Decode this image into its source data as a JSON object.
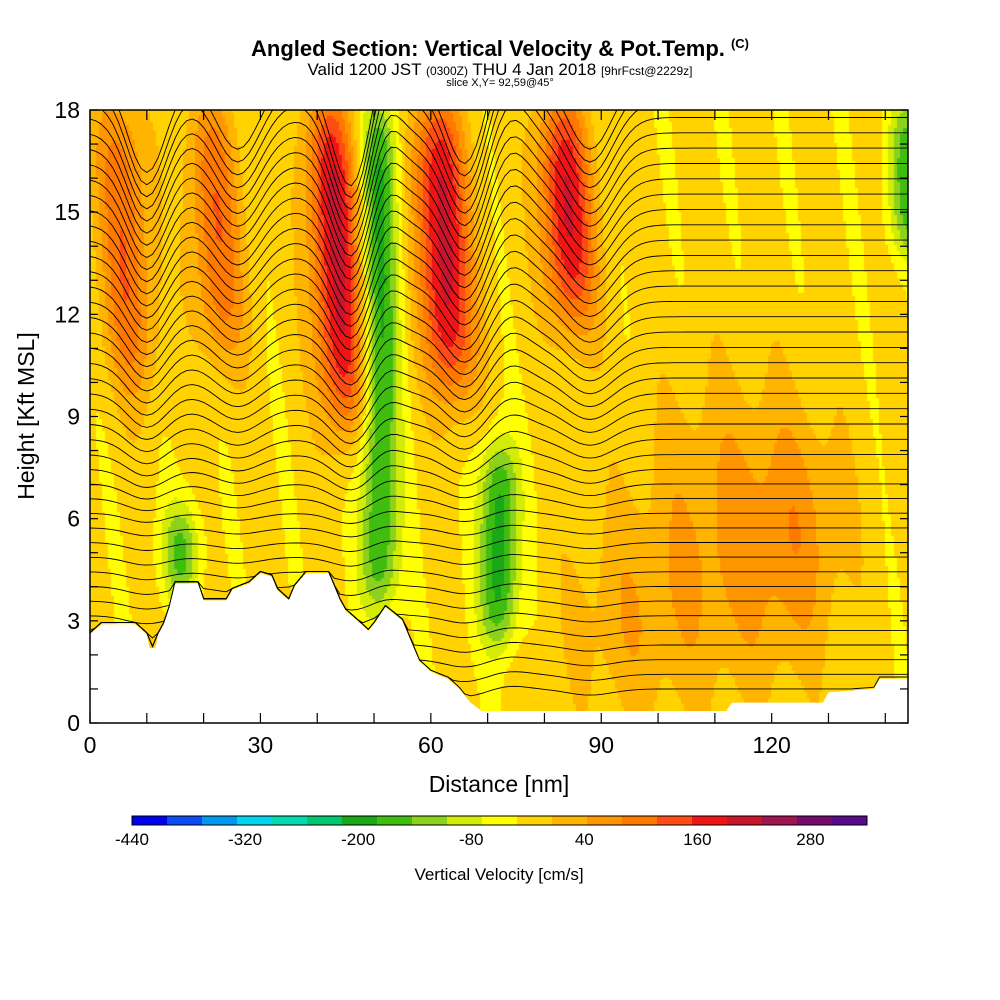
{
  "title": {
    "main": "Angled Section: Vertical Velocity & Pot.Temp.",
    "main_unit": "(C)",
    "valid_prefix": "Valid 1200 JST",
    "valid_utc": "(0300Z)",
    "valid_date": "THU 4 Jan 2018",
    "valid_fcst": "[9hrFcst@2229z]",
    "slice": "slice X,Y= 92,59@45°"
  },
  "colors": {
    "scale": [
      "#0000ee",
      "#0a4cf5",
      "#0099f0",
      "#00d6f0",
      "#00dbb0",
      "#00c86e",
      "#18a818",
      "#40be10",
      "#8cd21c",
      "#d2ec06",
      "#ffff00",
      "#ffd200",
      "#ffb400",
      "#ff9600",
      "#ff7800",
      "#ff4b14",
      "#f01414",
      "#c8142d",
      "#a01450",
      "#780a6e",
      "#5a0a8c"
    ],
    "terrain": "#ffffff",
    "contour": "#000000"
  },
  "chart_data": {
    "type": "heatmap",
    "title": "Angled Section: Vertical Velocity & Pot.Temp.",
    "xlabel": "Distance [nm]",
    "ylabel": "Height [Kft MSL]",
    "xlim": [
      0,
      144
    ],
    "ylim": [
      0,
      18
    ],
    "x_ticks": [
      "0",
      "30",
      "60",
      "90",
      "120"
    ],
    "y_ticks": [
      "0",
      "3",
      "6",
      "9",
      "12",
      "15",
      "18"
    ],
    "colorbar": {
      "label": "Vertical Velocity [cm/s]",
      "ticks": [
        "-440",
        "-320",
        "-200",
        "-80",
        "40",
        "160",
        "280"
      ],
      "range": [
        -440,
        340
      ],
      "step": 40
    },
    "updraft_cores": [
      {
        "x": 45,
        "z_range": [
          9,
          18
        ],
        "max": 250
      },
      {
        "x": 64,
        "z_range": [
          10,
          18
        ],
        "max": 260
      },
      {
        "x": 86,
        "z_range": [
          12,
          18
        ],
        "max": 250
      },
      {
        "x": 8,
        "z_range": [
          10,
          18
        ],
        "max": 150
      },
      {
        "x": 24,
        "z_range": [
          11,
          18
        ],
        "max": 150
      }
    ],
    "downdraft_cores": [
      {
        "x": 51,
        "z_range": [
          3.5,
          18
        ],
        "min": -180
      },
      {
        "x": 72,
        "z_range": [
          2.5,
          8
        ],
        "min": -200
      },
      {
        "x": 16,
        "z_range": [
          4,
          6
        ],
        "min": -180
      },
      {
        "x": 144,
        "z_range": [
          14,
          18
        ],
        "min": -160
      }
    ]
  }
}
